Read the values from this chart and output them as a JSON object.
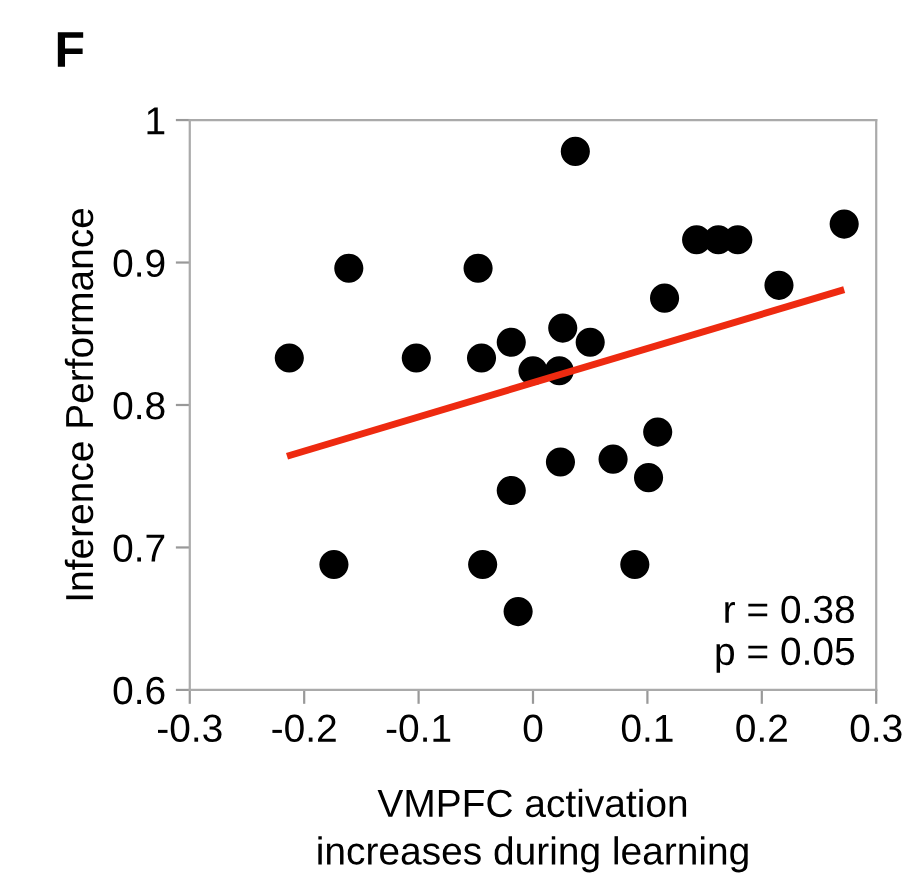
{
  "chart_data": {
    "type": "scatter",
    "title": "F",
    "xlabel": "VMPFC activation\nincreases during learning",
    "ylabel": "Inference Performance",
    "xlim": [
      -0.3,
      0.3
    ],
    "xticks": [
      {
        "value": -0.3,
        "label": "-0.3"
      },
      {
        "value": -0.2,
        "label": "-0.2"
      },
      {
        "value": -0.1,
        "label": "-0.1"
      },
      0,
      0.1,
      0.2,
      0.3
    ],
    "ylim": [
      0.6,
      1
    ],
    "yticks": [
      0.6,
      0.7,
      0.8,
      0.9,
      1
    ],
    "grid": false,
    "legend": false,
    "annotations": [
      "r = 0.38\np = 0.05"
    ],
    "series": [
      {
        "marker": "circle",
        "color": "#000000",
        "x": [
          -0.213,
          -0.161,
          -0.174,
          -0.102,
          -0.048,
          -0.045,
          -0.044,
          -0.019,
          -0.019,
          -0.013,
          0.0,
          0.023,
          0.026,
          0.024,
          0.037,
          0.05,
          0.07,
          0.089,
          0.101,
          0.109,
          0.115,
          0.143,
          0.162,
          0.179,
          0.215,
          0.272
        ],
        "values": [
          0.833,
          0.896,
          0.688,
          0.833,
          0.896,
          0.833,
          0.688,
          0.844,
          0.74,
          0.655,
          0.824,
          0.824,
          0.854,
          0.76,
          0.978,
          0.844,
          0.762,
          0.688,
          0.749,
          0.781,
          0.875,
          0.916,
          0.916,
          0.916,
          0.884,
          0.927
        ]
      },
      {
        "type": "line",
        "marker": "none",
        "color": "#ee2a10",
        "x": [
          -0.215,
          0.272
        ],
        "values": [
          0.764,
          0.881
        ]
      }
    ]
  }
}
